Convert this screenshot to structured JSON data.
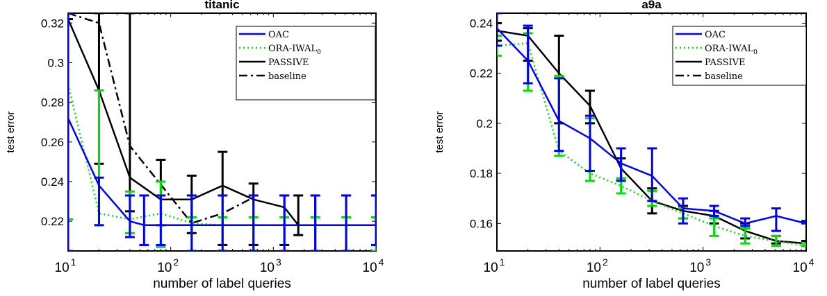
{
  "chart_data": [
    {
      "type": "line",
      "title": "titanic",
      "xlabel": "number of label queries",
      "ylabel": "test error",
      "x_scale": "log",
      "xlim": [
        10,
        10000
      ],
      "ylim": [
        0.205,
        0.325
      ],
      "x_ticks": [
        {
          "value": 10,
          "base": "10",
          "exp": "1"
        },
        {
          "value": 100,
          "base": "10",
          "exp": "2"
        },
        {
          "value": 1000,
          "base": "10",
          "exp": "3"
        },
        {
          "value": 10000,
          "base": "10",
          "exp": "4"
        }
      ],
      "y_ticks": [
        {
          "value": 0.22,
          "label": "0.22"
        },
        {
          "value": 0.24,
          "label": "0.24"
        },
        {
          "value": 0.26,
          "label": "0.26"
        },
        {
          "value": 0.28,
          "label": "0.28"
        },
        {
          "value": 0.3,
          "label": "0.3"
        },
        {
          "value": 0.32,
          "label": "0.32"
        }
      ],
      "legend": {
        "position": "top-right"
      },
      "series": [
        {
          "name": "OAC",
          "color": "#0000ff",
          "dash": "solid",
          "x": [
            10,
            20,
            40,
            55,
            80,
            160,
            320,
            640,
            1280,
            2560,
            5120,
            10000
          ],
          "y": [
            0.272,
            0.238,
            0.22,
            0.218,
            0.218,
            0.218,
            0.218,
            0.218,
            0.218,
            0.218,
            0.218,
            0.218
          ],
          "err_low": [
            0.205,
            0.218,
            0.212,
            0.208,
            0.208,
            0.205,
            0.205,
            0.205,
            0.205,
            0.205,
            0.205,
            0.208
          ],
          "err_high": [
            0.325,
            0.242,
            0.233,
            0.233,
            0.233,
            0.233,
            0.233,
            0.233,
            0.233,
            0.233,
            0.233,
            0.233
          ]
        },
        {
          "name": "ORA-IWAL",
          "name_sub": "0",
          "color": "#00e000",
          "dash": "dotted",
          "x": [
            10,
            20,
            40,
            80,
            160,
            320,
            640,
            1280,
            2560,
            5120,
            10000
          ],
          "y": [
            0.289,
            0.224,
            0.221,
            0.224,
            0.219,
            0.218,
            0.218,
            0.218,
            0.218,
            0.218,
            0.218
          ],
          "err_low": [
            0.221,
            0.218,
            0.214,
            0.207,
            0.205,
            0.205,
            0.205,
            0.205,
            0.205,
            0.205,
            0.205
          ],
          "err_high": [
            0.325,
            0.286,
            0.235,
            0.24,
            0.222,
            0.222,
            0.222,
            0.222,
            0.222,
            0.222,
            0.222
          ]
        },
        {
          "name": "PASSIVE",
          "color": "#000000",
          "dash": "solid",
          "x": [
            10,
            20,
            40,
            80,
            160,
            320,
            640,
            1280,
            1750,
            2560,
            5120,
            10000
          ],
          "y": [
            0.322,
            0.286,
            0.242,
            0.231,
            0.231,
            0.238,
            0.231,
            0.227,
            0.218,
            0.218,
            0.218,
            0.218
          ],
          "err_low": [
            0.322,
            0.249,
            0.225,
            0.218,
            0.214,
            0.208,
            0.208,
            0.208,
            0.213,
            0.205,
            0.205,
            0.205
          ],
          "err_high": [
            0.325,
            0.325,
            0.325,
            0.251,
            0.243,
            0.255,
            0.239,
            0.233,
            0.233,
            0.233,
            0.233,
            0.233
          ]
        },
        {
          "name": "baseline",
          "color": "#000000",
          "dash": "dashdot",
          "x": [
            10,
            20,
            40,
            160,
            320,
            640
          ],
          "y": [
            0.325,
            0.32,
            0.258,
            0.219,
            0.224,
            0.232
          ],
          "err_low": [],
          "err_high": []
        }
      ]
    },
    {
      "type": "line",
      "title": "a9a",
      "xlabel": "number of label queries",
      "ylabel": "test error",
      "x_scale": "log",
      "xlim": [
        10,
        10000
      ],
      "ylim": [
        0.149,
        0.244
      ],
      "x_ticks": [
        {
          "value": 10,
          "base": "10",
          "exp": "1"
        },
        {
          "value": 100,
          "base": "10",
          "exp": "2"
        },
        {
          "value": 1000,
          "base": "10",
          "exp": "3"
        },
        {
          "value": 10000,
          "base": "10",
          "exp": "4"
        }
      ],
      "y_ticks": [
        {
          "value": 0.16,
          "label": "0.16"
        },
        {
          "value": 0.18,
          "label": "0.18"
        },
        {
          "value": 0.2,
          "label": "0.2"
        },
        {
          "value": 0.22,
          "label": "0.22"
        },
        {
          "value": 0.24,
          "label": "0.24"
        }
      ],
      "legend": {
        "position": "top-right"
      },
      "series": [
        {
          "name": "OAC",
          "color": "#0000ff",
          "dash": "solid",
          "x": [
            10,
            20,
            40,
            80,
            160,
            320,
            640,
            1280,
            2560,
            5120,
            10000
          ],
          "y": [
            0.238,
            0.225,
            0.201,
            0.194,
            0.184,
            0.179,
            0.166,
            0.165,
            0.16,
            0.163,
            0.16
          ],
          "err_low": [
            0.231,
            0.216,
            0.189,
            0.181,
            0.177,
            0.169,
            0.16,
            0.163,
            0.159,
            0.157,
            0.16
          ],
          "err_high": [
            0.244,
            0.239,
            0.218,
            0.203,
            0.19,
            0.19,
            0.17,
            0.167,
            0.162,
            0.166,
            0.161
          ]
        },
        {
          "name": "ORA-IWAL",
          "name_sub": "0",
          "color": "#00e000",
          "dash": "dotted",
          "x": [
            10,
            20,
            40,
            80,
            160,
            320,
            640,
            1280,
            2560,
            5120,
            10000
          ],
          "y": [
            0.231,
            0.232,
            0.189,
            0.18,
            0.175,
            0.169,
            0.164,
            0.159,
            0.155,
            0.153,
            0.151
          ],
          "err_low": [
            0.227,
            0.213,
            0.187,
            0.177,
            0.172,
            0.167,
            0.162,
            0.155,
            0.152,
            0.151,
            0.151
          ],
          "err_high": [
            0.235,
            0.236,
            0.219,
            0.202,
            0.178,
            0.173,
            0.166,
            0.162,
            0.158,
            0.155,
            0.152
          ]
        },
        {
          "name": "PASSIVE",
          "color": "#000000",
          "dash": "solid",
          "x": [
            10,
            20,
            40,
            80,
            160,
            320,
            640,
            1280,
            2560,
            5120,
            10000
          ],
          "y": [
            0.237,
            0.235,
            0.22,
            0.207,
            0.182,
            0.169,
            0.165,
            0.163,
            0.157,
            0.153,
            0.152
          ],
          "err_low": [
            0.233,
            0.225,
            0.2,
            0.2,
            0.178,
            0.164,
            0.162,
            0.16,
            0.154,
            0.152,
            0.151
          ],
          "err_high": [
            0.24,
            0.238,
            0.235,
            0.213,
            0.186,
            0.174,
            0.167,
            0.165,
            0.16,
            0.155,
            0.153
          ]
        },
        {
          "name": "baseline",
          "color": "#000000",
          "dash": "dashdot",
          "x": [],
          "y": [],
          "err_low": [],
          "err_high": []
        }
      ]
    }
  ]
}
